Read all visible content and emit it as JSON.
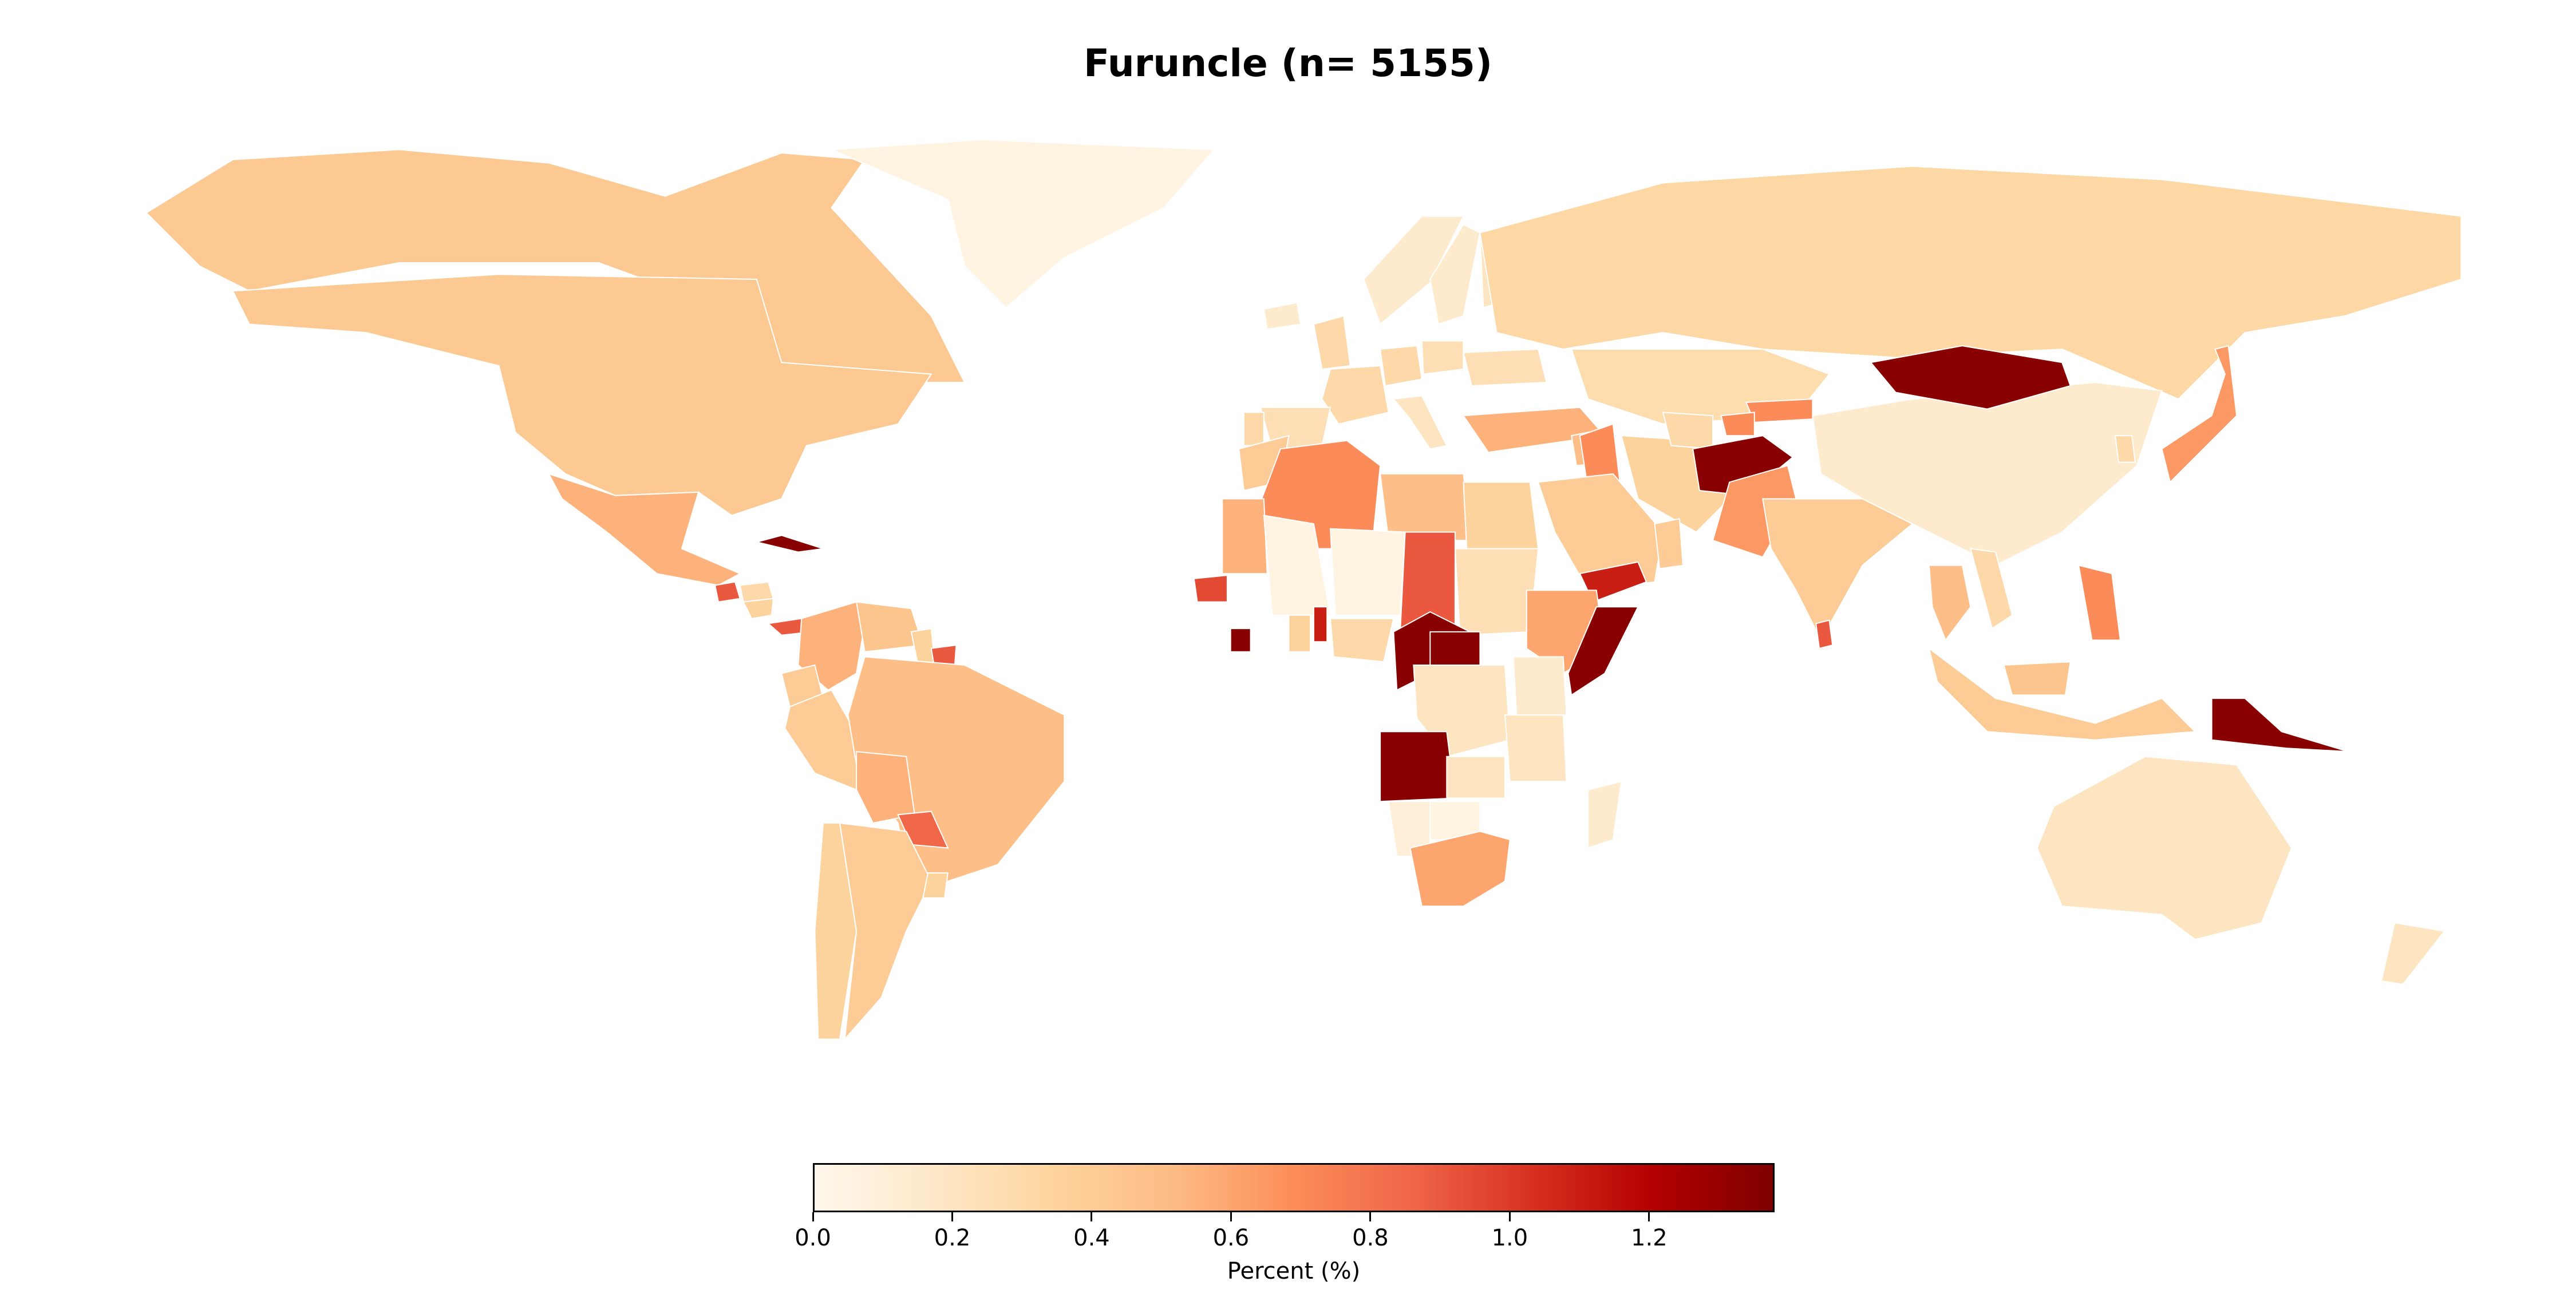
{
  "title": "Furuncle (n= 5155)",
  "colorbar": {
    "label": "Percent (%)",
    "min": 0.0,
    "max": 1.38,
    "ticks": [
      "0.0",
      "0.2",
      "0.4",
      "0.6",
      "0.8",
      "1.0",
      "1.2"
    ],
    "tick_values": [
      0.0,
      0.2,
      0.4,
      0.6,
      0.8,
      1.0,
      1.2
    ],
    "colormap": "OrRd",
    "stops": [
      "#fff7ec",
      "#fee8c8",
      "#fdd49e",
      "#fdbb84",
      "#fc8d59",
      "#ef6548",
      "#d7301f",
      "#b30000",
      "#7f0000"
    ]
  },
  "chart_data": {
    "type": "heatmap",
    "title": "Furuncle (n= 5155)",
    "value_label": "Percent (%)",
    "range": [
      0.0,
      1.38
    ],
    "regions": [
      {
        "region": "Canada",
        "value": 0.42
      },
      {
        "region": "United States",
        "value": 0.42
      },
      {
        "region": "Greenland",
        "value": 0.05
      },
      {
        "region": "Mexico",
        "value": 0.55
      },
      {
        "region": "Cuba",
        "value": 1.35
      },
      {
        "region": "Guatemala",
        "value": 0.9
      },
      {
        "region": "Honduras",
        "value": 0.3
      },
      {
        "region": "Nicaragua",
        "value": 0.35
      },
      {
        "region": "Panama",
        "value": 0.9
      },
      {
        "region": "Colombia",
        "value": 0.55
      },
      {
        "region": "Venezuela",
        "value": 0.45
      },
      {
        "region": "Guyana",
        "value": 0.35
      },
      {
        "region": "Suriname",
        "value": 0.9
      },
      {
        "region": "Ecuador",
        "value": 0.4
      },
      {
        "region": "Peru",
        "value": 0.4
      },
      {
        "region": "Brazil",
        "value": 0.5
      },
      {
        "region": "Bolivia",
        "value": 0.55
      },
      {
        "region": "Paraguay",
        "value": 0.85
      },
      {
        "region": "Chile",
        "value": 0.35
      },
      {
        "region": "Argentina",
        "value": 0.4
      },
      {
        "region": "Uruguay",
        "value": 0.35
      },
      {
        "region": "Iceland",
        "value": 0.15
      },
      {
        "region": "United Kingdom",
        "value": 0.3
      },
      {
        "region": "Norway",
        "value": 0.15
      },
      {
        "region": "Sweden",
        "value": 0.15
      },
      {
        "region": "Finland",
        "value": 0.2
      },
      {
        "region": "France",
        "value": 0.3
      },
      {
        "region": "Spain",
        "value": 0.25
      },
      {
        "region": "Portugal",
        "value": 0.3
      },
      {
        "region": "Germany",
        "value": 0.3
      },
      {
        "region": "Italy",
        "value": 0.2
      },
      {
        "region": "Poland",
        "value": 0.25
      },
      {
        "region": "Ukraine",
        "value": 0.25
      },
      {
        "region": "Russia",
        "value": 0.32
      },
      {
        "region": "Turkey",
        "value": 0.55
      },
      {
        "region": "Syria",
        "value": 0.5
      },
      {
        "region": "Iraq",
        "value": 0.7
      },
      {
        "region": "Iran",
        "value": 0.35
      },
      {
        "region": "Saudi Arabia",
        "value": 0.4
      },
      {
        "region": "Yemen",
        "value": 1.1
      },
      {
        "region": "Oman",
        "value": 0.4
      },
      {
        "region": "Kazakhstan",
        "value": 0.28
      },
      {
        "region": "Kyrgyzstan",
        "value": 0.7
      },
      {
        "region": "Tajikistan",
        "value": 0.7
      },
      {
        "region": "Turkmenistan",
        "value": 0.3
      },
      {
        "region": "Afghanistan",
        "value": 1.35
      },
      {
        "region": "Pakistan",
        "value": 0.65
      },
      {
        "region": "India",
        "value": 0.4
      },
      {
        "region": "Sri Lanka",
        "value": 0.9
      },
      {
        "region": "China",
        "value": 0.15
      },
      {
        "region": "Mongolia",
        "value": 1.35
      },
      {
        "region": "Japan",
        "value": 0.65
      },
      {
        "region": "South Korea",
        "value": 0.3
      },
      {
        "region": "Thailand",
        "value": 0.5
      },
      {
        "region": "Vietnam",
        "value": 0.3
      },
      {
        "region": "Philippines",
        "value": 0.7
      },
      {
        "region": "Malaysia",
        "value": 0.45
      },
      {
        "region": "Indonesia",
        "value": 0.4
      },
      {
        "region": "Papua New Guinea",
        "value": 1.35
      },
      {
        "region": "Australia",
        "value": 0.2
      },
      {
        "region": "New Zealand",
        "value": 0.2
      },
      {
        "region": "Morocco",
        "value": 0.4
      },
      {
        "region": "Algeria",
        "value": 0.7
      },
      {
        "region": "Libya",
        "value": 0.5
      },
      {
        "region": "Egypt",
        "value": 0.35
      },
      {
        "region": "Mauritania",
        "value": 0.55
      },
      {
        "region": "Mali",
        "value": 0.05
      },
      {
        "region": "Niger",
        "value": 0.05
      },
      {
        "region": "Chad",
        "value": 0.9
      },
      {
        "region": "Sudan",
        "value": 0.25
      },
      {
        "region": "Ethiopia",
        "value": 0.6
      },
      {
        "region": "Somalia",
        "value": 1.35
      },
      {
        "region": "Senegal",
        "value": 0.95
      },
      {
        "region": "Liberia",
        "value": 1.35
      },
      {
        "region": "Ghana",
        "value": 0.35
      },
      {
        "region": "Benin",
        "value": 1.1
      },
      {
        "region": "Nigeria",
        "value": 0.3
      },
      {
        "region": "Cameroon",
        "value": 1.35
      },
      {
        "region": "Central African Republic",
        "value": 1.35
      },
      {
        "region": "DR Congo",
        "value": 0.2
      },
      {
        "region": "Kenya",
        "value": 0.15
      },
      {
        "region": "Tanzania",
        "value": 0.2
      },
      {
        "region": "Angola",
        "value": 1.35
      },
      {
        "region": "Zambia",
        "value": 0.2
      },
      {
        "region": "Namibia",
        "value": 0.1
      },
      {
        "region": "Botswana",
        "value": 0.05
      },
      {
        "region": "South Africa",
        "value": 0.6
      },
      {
        "region": "Madagascar",
        "value": 0.15
      }
    ]
  }
}
